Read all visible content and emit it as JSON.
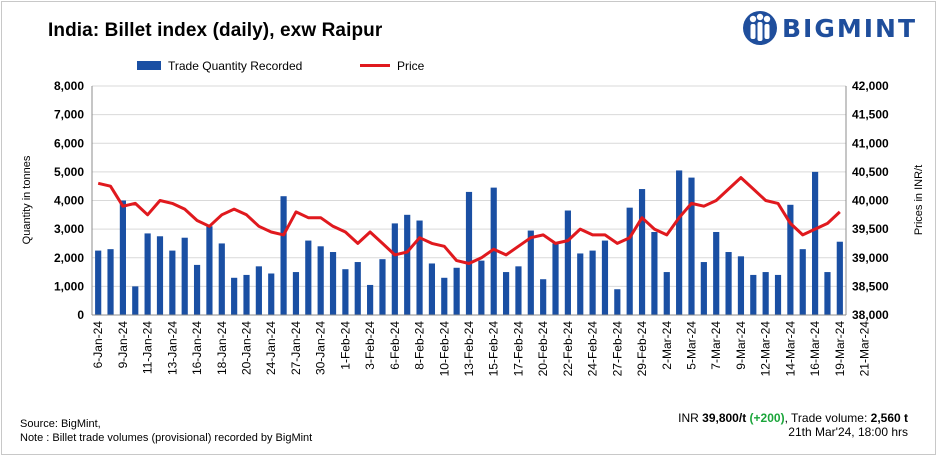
{
  "title": "India: Billet index (daily), exw Raipur",
  "brand": {
    "name": "BIGMINT",
    "color": "#1f4e9c"
  },
  "footer": {
    "source": "Source: BigMint,",
    "note": "Note : Billet trade volumes (provisional) recorded by BigMint",
    "price_prefix": "INR",
    "price_value": "39,800/t",
    "price_change": "(+200)",
    "volume_label": ", Trade volume:",
    "volume_value": "2,560 t",
    "timestamp": "21th Mar'24, 18:00 hrs"
  },
  "chart_data": {
    "type": "bar+line",
    "title": "India: Billet index (daily), exw Raipur",
    "ylabel_left": "Quantity in tonnes",
    "ylabel_right": "Prices in INR/t",
    "ylim_left": [
      0,
      8000
    ],
    "ylim_right": [
      38000,
      42000
    ],
    "yticks_left": [
      "0",
      "1,000",
      "2,000",
      "3,000",
      "4,000",
      "5,000",
      "6,000",
      "7,000",
      "8,000"
    ],
    "yticks_right": [
      "38,000",
      "38,500",
      "39,000",
      "39,500",
      "40,000",
      "40,500",
      "41,000",
      "41,500",
      "42,000"
    ],
    "legend": {
      "bar": "Trade Quantity Recorded",
      "line": "Price",
      "position": "top"
    },
    "colors": {
      "bar": "#1a4fa3",
      "line": "#e0191e"
    },
    "x_tick_labels": [
      "6-Jan-24",
      "9-Jan-24",
      "11-Jan-24",
      "13-Jan-24",
      "16-Jan-24",
      "18-Jan-24",
      "20-Jan-24",
      "24-Jan-24",
      "27-Jan-24",
      "30-Jan-24",
      "1-Feb-24",
      "3-Feb-24",
      "6-Feb-24",
      "8-Feb-24",
      "10-Feb-24",
      "13-Feb-24",
      "15-Feb-24",
      "17-Feb-24",
      "20-Feb-24",
      "22-Feb-24",
      "24-Feb-24",
      "27-Feb-24",
      "29-Feb-24",
      "2-Mar-24",
      "5-Mar-24",
      "7-Mar-24",
      "9-Mar-24",
      "12-Mar-24",
      "14-Mar-24",
      "16-Mar-24",
      "19-Mar-24",
      "21-Mar-24"
    ],
    "quantity": [
      2250,
      2300,
      4000,
      1000,
      2850,
      2750,
      2250,
      2700,
      1750,
      3100,
      2500,
      1300,
      1400,
      1700,
      1450,
      4150,
      1500,
      2600,
      2400,
      2200,
      1600,
      1850,
      1050,
      1950,
      3200,
      3500,
      3300,
      1800,
      1300,
      1650,
      4300,
      1900,
      4450,
      1500,
      1700,
      2950,
      1250,
      2500,
      3650,
      2150,
      2250,
      2600,
      900,
      3750,
      4400,
      2900,
      1500,
      5050,
      4800,
      1850,
      2900,
      2200,
      2050,
      1400,
      1500,
      1400,
      3850,
      2300,
      5000,
      1500,
      2560
    ],
    "price": [
      40300,
      40250,
      39900,
      39950,
      39750,
      40000,
      39950,
      39850,
      39650,
      39550,
      39750,
      39850,
      39750,
      39550,
      39450,
      39400,
      39800,
      39700,
      39700,
      39550,
      39450,
      39250,
      39450,
      39250,
      39050,
      39100,
      39350,
      39250,
      39200,
      38950,
      38900,
      39000,
      39150,
      39050,
      39200,
      39350,
      39400,
      39250,
      39300,
      39500,
      39400,
      39400,
      39250,
      39350,
      39700,
      39500,
      39400,
      39700,
      39950,
      39900,
      40000,
      40200,
      40400,
      40200,
      40000,
      39950,
      39600,
      39400,
      39500,
      39600,
      39800
    ]
  }
}
